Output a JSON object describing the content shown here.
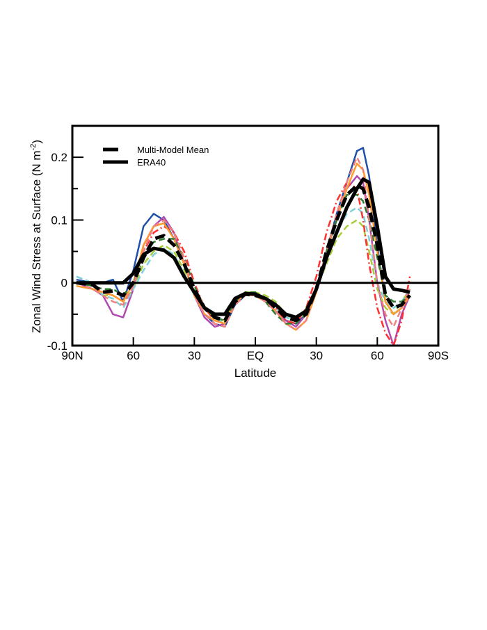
{
  "chart_data": {
    "type": "line",
    "xlabel": "Latitude",
    "ylabel": "Zonal Wind Stress at Surface (N m",
    "ylabel_sup": "-2",
    "ylabel_close": ")",
    "xlim": [
      90,
      -90
    ],
    "ylim": [
      -0.1,
      0.25
    ],
    "x_ticks": [
      {
        "value": 90,
        "label": "90N"
      },
      {
        "value": 60,
        "label": "60"
      },
      {
        "value": 30,
        "label": "30"
      },
      {
        "value": 0,
        "label": "EQ"
      },
      {
        "value": -30,
        "label": "30"
      },
      {
        "value": -60,
        "label": "60"
      },
      {
        "value": -90,
        "label": "90S"
      }
    ],
    "y_ticks": [
      {
        "value": -0.1,
        "label": "-0.1"
      },
      {
        "value": 0,
        "label": "0"
      },
      {
        "value": 0.1,
        "label": "0.1"
      },
      {
        "value": 0.2,
        "label": "0.2"
      }
    ],
    "y_minor_ticks": [
      -0.05,
      0.05,
      0.15
    ],
    "zero_line": true,
    "grid": false,
    "legend_position": "top-left",
    "x": [
      88,
      80,
      75,
      70,
      65,
      60,
      55,
      50,
      45,
      40,
      35,
      30,
      25,
      20,
      15,
      10,
      5,
      0,
      -5,
      -10,
      -15,
      -20,
      -25,
      -30,
      -35,
      -40,
      -45,
      -50,
      -53,
      -56,
      -60,
      -64,
      -68,
      -72,
      -76
    ],
    "series": [
      {
        "color": "#1f4fa8",
        "dash": "solid",
        "values": [
          0.005,
          0,
          0,
          0.005,
          -0.03,
          0.02,
          0.09,
          0.11,
          0.1,
          0.07,
          0.03,
          -0.02,
          -0.05,
          -0.065,
          -0.07,
          -0.035,
          -0.02,
          -0.02,
          -0.03,
          -0.045,
          -0.06,
          -0.065,
          -0.05,
          -0.01,
          0.05,
          0.11,
          0.16,
          0.21,
          0.215,
          0.17,
          0.06,
          -0.03,
          -0.05,
          -0.04,
          -0.01
        ]
      },
      {
        "color": "#b04ab0",
        "dash": "solid",
        "values": [
          0,
          -0.01,
          -0.02,
          -0.05,
          -0.055,
          -0.01,
          0.06,
          0.09,
          0.105,
          0.08,
          0.03,
          -0.02,
          -0.055,
          -0.07,
          -0.065,
          -0.03,
          -0.02,
          -0.02,
          -0.03,
          -0.045,
          -0.06,
          -0.07,
          -0.05,
          -0.01,
          0.05,
          0.1,
          0.15,
          0.17,
          0.16,
          0.1,
          0.0,
          -0.06,
          -0.1,
          -0.05,
          -0.02
        ]
      },
      {
        "color": "#a8cc3a",
        "dash": "dashed",
        "values": [
          0,
          -0.005,
          -0.02,
          -0.02,
          -0.03,
          -0.01,
          0.03,
          0.05,
          0.06,
          0.05,
          0.02,
          -0.02,
          -0.05,
          -0.06,
          -0.06,
          -0.025,
          -0.015,
          -0.015,
          -0.02,
          -0.03,
          -0.05,
          -0.06,
          -0.04,
          -0.01,
          0.03,
          0.07,
          0.09,
          0.1,
          0.09,
          0.05,
          -0.01,
          -0.04,
          -0.05,
          -0.03,
          -0.01
        ]
      },
      {
        "color": "#7fd0d8",
        "dash": "dashed",
        "values": [
          0.01,
          0,
          -0.02,
          -0.025,
          -0.04,
          -0.01,
          0.02,
          0.045,
          0.055,
          0.045,
          0.015,
          -0.02,
          -0.05,
          -0.06,
          -0.06,
          -0.03,
          -0.02,
          -0.02,
          -0.03,
          -0.04,
          -0.055,
          -0.06,
          -0.045,
          -0.01,
          0.04,
          0.08,
          0.11,
          0.12,
          0.11,
          0.07,
          0,
          -0.03,
          -0.04,
          -0.03,
          -0.01
        ]
      },
      {
        "color": "#ff3030",
        "dash": "dashdot",
        "values": [
          0,
          -0.005,
          -0.015,
          -0.02,
          -0.03,
          0,
          0.05,
          0.08,
          0.09,
          0.08,
          0.05,
          0,
          -0.04,
          -0.06,
          -0.065,
          -0.03,
          -0.02,
          -0.02,
          -0.03,
          -0.04,
          -0.06,
          -0.065,
          -0.04,
          0.01,
          0.08,
          0.13,
          0.16,
          0.15,
          0.1,
          0.03,
          -0.04,
          -0.08,
          -0.1,
          -0.06,
          0.01
        ]
      },
      {
        "color": "#ff9a30",
        "dash": "solid",
        "values": [
          -0.005,
          -0.01,
          -0.015,
          -0.02,
          -0.03,
          0,
          0.06,
          0.09,
          0.095,
          0.07,
          0.03,
          -0.02,
          -0.05,
          -0.06,
          -0.065,
          -0.03,
          -0.02,
          -0.02,
          -0.03,
          -0.045,
          -0.065,
          -0.075,
          -0.06,
          -0.015,
          0.05,
          0.1,
          0.15,
          0.19,
          0.18,
          0.14,
          0.05,
          -0.03,
          -0.05,
          -0.04,
          -0.02
        ]
      },
      {
        "color": "#2e7d32",
        "dash": "dashed",
        "values": [
          0,
          -0.005,
          -0.01,
          -0.01,
          -0.02,
          0,
          0.04,
          0.065,
          0.07,
          0.07,
          0.04,
          -0.005,
          -0.04,
          -0.055,
          -0.06,
          -0.03,
          -0.015,
          -0.015,
          -0.03,
          -0.05,
          -0.065,
          -0.065,
          -0.05,
          -0.01,
          0.05,
          0.1,
          0.14,
          0.14,
          0.13,
          0.1,
          0.04,
          -0.02,
          -0.03,
          -0.03,
          -0.02
        ]
      },
      {
        "color": "#f08080",
        "dash": "dashed",
        "values": [
          0,
          -0.01,
          -0.02,
          -0.03,
          -0.035,
          -0.005,
          0.05,
          0.09,
          0.1,
          0.08,
          0.04,
          -0.02,
          -0.05,
          -0.065,
          -0.07,
          -0.035,
          -0.02,
          -0.02,
          -0.03,
          -0.045,
          -0.065,
          -0.075,
          -0.06,
          -0.01,
          0.05,
          0.11,
          0.16,
          0.2,
          0.18,
          0.1,
          0.0,
          -0.05,
          -0.07,
          -0.04,
          -0.01
        ]
      },
      {
        "name": "Multi-Model Mean",
        "color": "#000000",
        "dash": "dashed",
        "values": [
          0,
          -0.003,
          -0.015,
          -0.013,
          -0.02,
          0,
          0.04,
          0.07,
          0.075,
          0.06,
          0.03,
          -0.01,
          -0.04,
          -0.055,
          -0.06,
          -0.03,
          -0.018,
          -0.02,
          -0.025,
          -0.04,
          -0.055,
          -0.06,
          -0.05,
          -0.01,
          0.05,
          0.1,
          0.14,
          0.155,
          0.15,
          0.12,
          0.06,
          -0.02,
          -0.04,
          -0.035,
          -0.02
        ]
      },
      {
        "name": "ERA40",
        "color": "#000000",
        "dash": "solid",
        "values": [
          0,
          0,
          0,
          0,
          0,
          0.015,
          0.045,
          0.055,
          0.052,
          0.04,
          0.01,
          -0.015,
          -0.04,
          -0.05,
          -0.05,
          -0.025,
          -0.017,
          -0.018,
          -0.025,
          -0.035,
          -0.05,
          -0.055,
          -0.045,
          -0.01,
          0.04,
          0.08,
          0.12,
          0.15,
          0.165,
          0.16,
          0.09,
          0.01,
          -0.01,
          -0.012,
          -0.015
        ]
      }
    ],
    "legend": [
      {
        "label": "Multi-Model Mean",
        "dash": "dashed"
      },
      {
        "label": "ERA40",
        "dash": "solid"
      }
    ]
  }
}
